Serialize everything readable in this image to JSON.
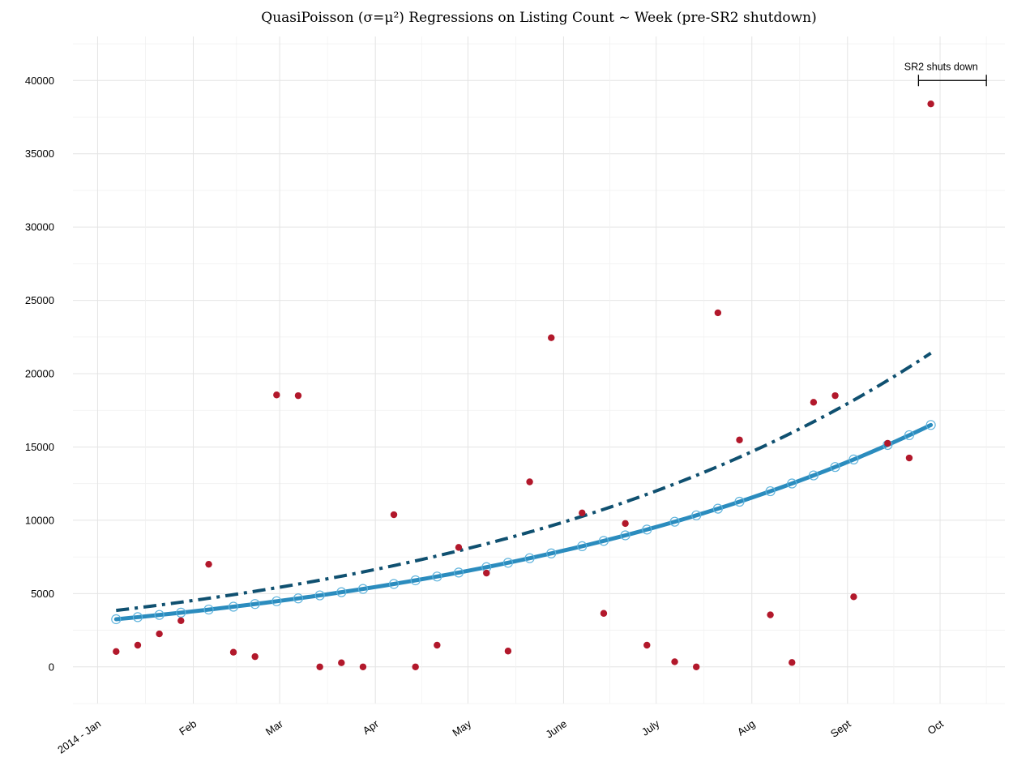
{
  "chart_data": {
    "type": "scatter",
    "title": "QuasiPoisson (σ=μ²) Regressions on Listing Count ~ Week (pre-SR2 shutdown)",
    "xlabel": "",
    "ylabel": "",
    "x_axis": {
      "type": "date",
      "range": [
        "2013-12-24",
        "2014-10-22"
      ],
      "ticks": [
        {
          "date": "2014-01-01",
          "label": "2014 - Jan"
        },
        {
          "date": "2014-02-01",
          "label": "Feb"
        },
        {
          "date": "2014-03-01",
          "label": "Mar"
        },
        {
          "date": "2014-04-01",
          "label": "Apr"
        },
        {
          "date": "2014-05-01",
          "label": "May"
        },
        {
          "date": "2014-06-01",
          "label": "June"
        },
        {
          "date": "2014-07-01",
          "label": "July"
        },
        {
          "date": "2014-08-01",
          "label": "Aug"
        },
        {
          "date": "2014-09-01",
          "label": "Sept"
        },
        {
          "date": "2014-10-01",
          "label": "Oct"
        }
      ]
    },
    "y_axis": {
      "range": [
        -2500,
        43000
      ],
      "ticks": [
        0,
        5000,
        10000,
        15000,
        20000,
        25000,
        30000,
        35000,
        40000
      ],
      "tick_labels": [
        "0",
        "5000",
        "10000",
        "15000",
        "20000",
        "25000",
        "30000",
        "35000",
        "40000"
      ]
    },
    "grid": true,
    "series": [
      {
        "kind": "points",
        "color": "#b2182b",
        "points": [
          {
            "x": "2014-01-07",
            "y": 1050
          },
          {
            "x": "2014-01-14",
            "y": 1480
          },
          {
            "x": "2014-01-21",
            "y": 2250
          },
          {
            "x": "2014-01-28",
            "y": 3150
          },
          {
            "x": "2014-02-06",
            "y": 7000
          },
          {
            "x": "2014-02-14",
            "y": 1000
          },
          {
            "x": "2014-02-21",
            "y": 700
          },
          {
            "x": "2014-02-28",
            "y": 18550
          },
          {
            "x": "2014-03-07",
            "y": 18500
          },
          {
            "x": "2014-03-14",
            "y": 0
          },
          {
            "x": "2014-03-21",
            "y": 280
          },
          {
            "x": "2014-03-28",
            "y": 0
          },
          {
            "x": "2014-04-07",
            "y": 10380
          },
          {
            "x": "2014-04-14",
            "y": 0
          },
          {
            "x": "2014-04-21",
            "y": 1480
          },
          {
            "x": "2014-04-28",
            "y": 8150
          },
          {
            "x": "2014-05-07",
            "y": 6400
          },
          {
            "x": "2014-05-14",
            "y": 1080
          },
          {
            "x": "2014-05-21",
            "y": 12620
          },
          {
            "x": "2014-05-28",
            "y": 22450
          },
          {
            "x": "2014-06-07",
            "y": 10500
          },
          {
            "x": "2014-06-14",
            "y": 3650
          },
          {
            "x": "2014-06-21",
            "y": 9780
          },
          {
            "x": "2014-06-28",
            "y": 1480
          },
          {
            "x": "2014-07-07",
            "y": 350
          },
          {
            "x": "2014-07-14",
            "y": 0
          },
          {
            "x": "2014-07-21",
            "y": 24150
          },
          {
            "x": "2014-07-28",
            "y": 15480
          },
          {
            "x": "2014-08-07",
            "y": 3550
          },
          {
            "x": "2014-08-14",
            "y": 300
          },
          {
            "x": "2014-08-21",
            "y": 18050
          },
          {
            "x": "2014-08-28",
            "y": 18500
          },
          {
            "x": "2014-09-03",
            "y": 4780
          },
          {
            "x": "2014-09-14",
            "y": 15250
          },
          {
            "x": "2014-09-21",
            "y": 14250
          },
          {
            "x": "2014-09-28",
            "y": 38400
          }
        ]
      },
      {
        "kind": "fitted-line",
        "style": "solid",
        "color": "#2b8cbe",
        "x_start": "2014-01-07",
        "x_end": "2014-09-28",
        "y_start": 3250,
        "y_end": 16500
      },
      {
        "kind": "fitted-line",
        "style": "dash-dot",
        "color": "#0f5070",
        "x_start": "2014-01-07",
        "x_end": "2014-09-28",
        "y_start": 3850,
        "y_end": 21400
      }
    ],
    "annotations": [
      {
        "text": "SR2 shuts down",
        "x_start": "2014-09-24",
        "x_end": "2014-10-16",
        "y": 40000
      }
    ]
  }
}
